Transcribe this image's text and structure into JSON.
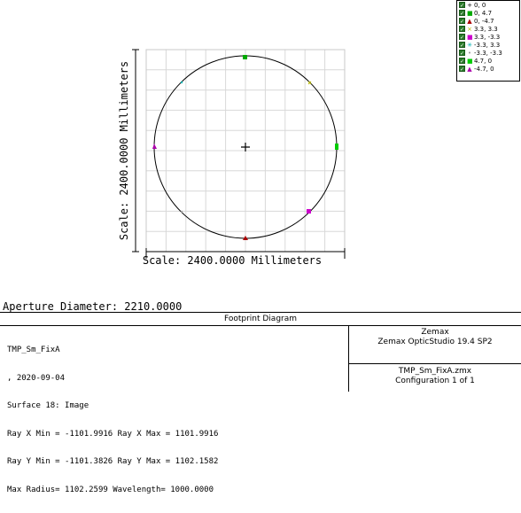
{
  "plot": {
    "y_scale_label": "Scale: 2400.0000 Millimeters",
    "x_scale_label": "Scale: 2400.0000 Millimeters"
  },
  "legend": [
    {
      "label": "0, 0",
      "marker": "+",
      "color": "#000000"
    },
    {
      "label": "0, 4.7",
      "marker": "■",
      "color": "#00aa00"
    },
    {
      "label": "0, -4.7",
      "marker": "▲",
      "color": "#aa0000"
    },
    {
      "label": "3.3, 3.3",
      "marker": "×",
      "color": "#b8b800"
    },
    {
      "label": "3.3, -3.3",
      "marker": "■",
      "color": "#cc00cc"
    },
    {
      "label": "-3.3, 3.3",
      "marker": "✳",
      "color": "#00b0b0"
    },
    {
      "label": "-3.3, -3.3",
      "marker": "•",
      "color": "#999999"
    },
    {
      "label": "4.7, 0",
      "marker": "■",
      "color": "#00cc00"
    },
    {
      "label": "-4.7, 0",
      "marker": "▲",
      "color": "#aa00aa"
    }
  ],
  "aperture": "Aperture Diameter: 2210.0000",
  "info": {
    "title": "Footprint Diagram",
    "lines": [
      "TMP_Sm_FixA",
      ", 2020-09-04",
      "Surface 18: Image",
      "Ray X Min = -1101.9916 Ray X Max = 1101.9916",
      "Ray Y Min = -1101.3826 Ray Y Max = 1102.1582",
      "Max Radius= 1102.2599 Wavelength= 1000.0000"
    ],
    "company": "Zemax",
    "product": "Zemax OpticStudio 19.4 SP2",
    "file": "TMP_Sm_FixA.zmx",
    "config": "Configuration 1 of 1"
  }
}
